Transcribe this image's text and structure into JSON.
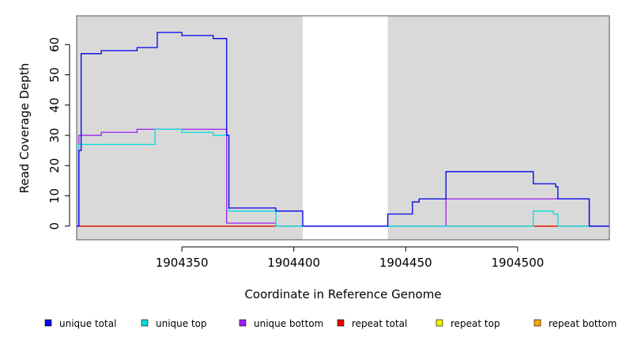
{
  "chart_data": {
    "type": "line",
    "title": "",
    "xlabel": "Coordinate in Reference Genome",
    "ylabel": "Read Coverage Depth",
    "xlim": [
      1904303,
      1904541
    ],
    "ylim": [
      -4.5,
      69.5
    ],
    "xticks": [
      1904350,
      1904400,
      1904450,
      1904500
    ],
    "yticks": [
      0,
      10,
      20,
      30,
      40,
      50,
      60
    ],
    "grid": false,
    "legend_position": "bottom",
    "shaded_regions": [
      {
        "x": [
          1904303,
          1904404
        ],
        "color": "#d9d9d9"
      },
      {
        "x": [
          1904442,
          1904541
        ],
        "color": "#d9d9d9"
      }
    ],
    "series": [
      {
        "name": "unique total",
        "color": "#0000ee",
        "step": true,
        "points": [
          [
            1904303,
            0
          ],
          [
            1904304,
            25
          ],
          [
            1904305,
            57
          ],
          [
            1904314,
            58
          ],
          [
            1904330,
            59
          ],
          [
            1904339,
            64
          ],
          [
            1904350,
            63
          ],
          [
            1904364,
            62
          ],
          [
            1904370,
            30
          ],
          [
            1904371,
            6
          ],
          [
            1904392,
            5
          ],
          [
            1904404,
            0
          ],
          [
            1904442,
            4
          ],
          [
            1904453,
            8
          ],
          [
            1904456,
            9
          ],
          [
            1904468,
            18
          ],
          [
            1904507,
            14
          ],
          [
            1904517,
            13
          ],
          [
            1904518,
            9
          ],
          [
            1904532,
            0
          ],
          [
            1904541,
            0
          ]
        ]
      },
      {
        "name": "unique top",
        "color": "#00dddd",
        "step": true,
        "points": [
          [
            1904303,
            0
          ],
          [
            1904304,
            27
          ],
          [
            1904338,
            32
          ],
          [
            1904350,
            31
          ],
          [
            1904364,
            30
          ],
          [
            1904371,
            5
          ],
          [
            1904392,
            0
          ],
          [
            1904507,
            5
          ],
          [
            1904516,
            4
          ],
          [
            1904518,
            0
          ],
          [
            1904541,
            0
          ]
        ]
      },
      {
        "name": "unique bottom",
        "color": "#a020f0",
        "step": true,
        "points": [
          [
            1904303,
            0
          ],
          [
            1904304,
            30
          ],
          [
            1904314,
            31
          ],
          [
            1904330,
            32
          ],
          [
            1904370,
            1
          ],
          [
            1904392,
            0
          ],
          [
            1904468,
            9
          ],
          [
            1904532,
            0
          ],
          [
            1904541,
            0
          ]
        ]
      },
      {
        "name": "repeat total",
        "color": "#ee0000",
        "step": true,
        "points": [
          [
            1904303,
            0
          ],
          [
            1904541,
            0
          ]
        ]
      },
      {
        "name": "repeat top",
        "color": "#eeee00",
        "step": true,
        "points": [
          [
            1904303,
            0
          ],
          [
            1904541,
            0
          ]
        ]
      },
      {
        "name": "repeat bottom",
        "color": "#ffa500",
        "step": true,
        "points": [
          [
            1904303,
            0
          ],
          [
            1904541,
            0
          ]
        ]
      }
    ]
  }
}
